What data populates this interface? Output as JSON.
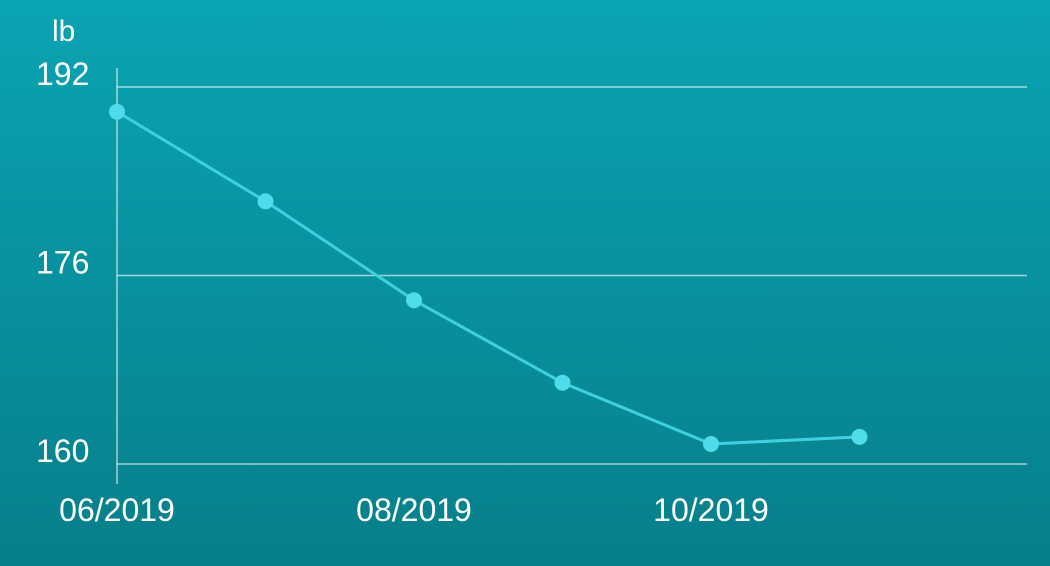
{
  "colors": {
    "background_top": "#0aa4b3",
    "background_bottom": "#077f8a",
    "line": "#3fd0e0",
    "point": "#4fdcea",
    "grid": "#ffffff",
    "text": "#ffffff"
  },
  "chart_data": {
    "type": "line",
    "ylabel": "lb",
    "xlabel": "",
    "title": "",
    "grid": true,
    "ylim": [
      160,
      192
    ],
    "y_ticks": [
      160,
      176,
      192
    ],
    "x_tick_labels": [
      "06/2019",
      "08/2019",
      "10/2019"
    ],
    "xlim": [
      "2019-06",
      "2019-12"
    ],
    "series": [
      {
        "x": [
          "2019-06",
          "2019-07",
          "2019-08",
          "2019-09",
          "2019-10",
          "2019-11"
        ],
        "values": [
          189.9,
          182.3,
          173.9,
          166.9,
          161.7,
          162.3
        ]
      }
    ]
  }
}
